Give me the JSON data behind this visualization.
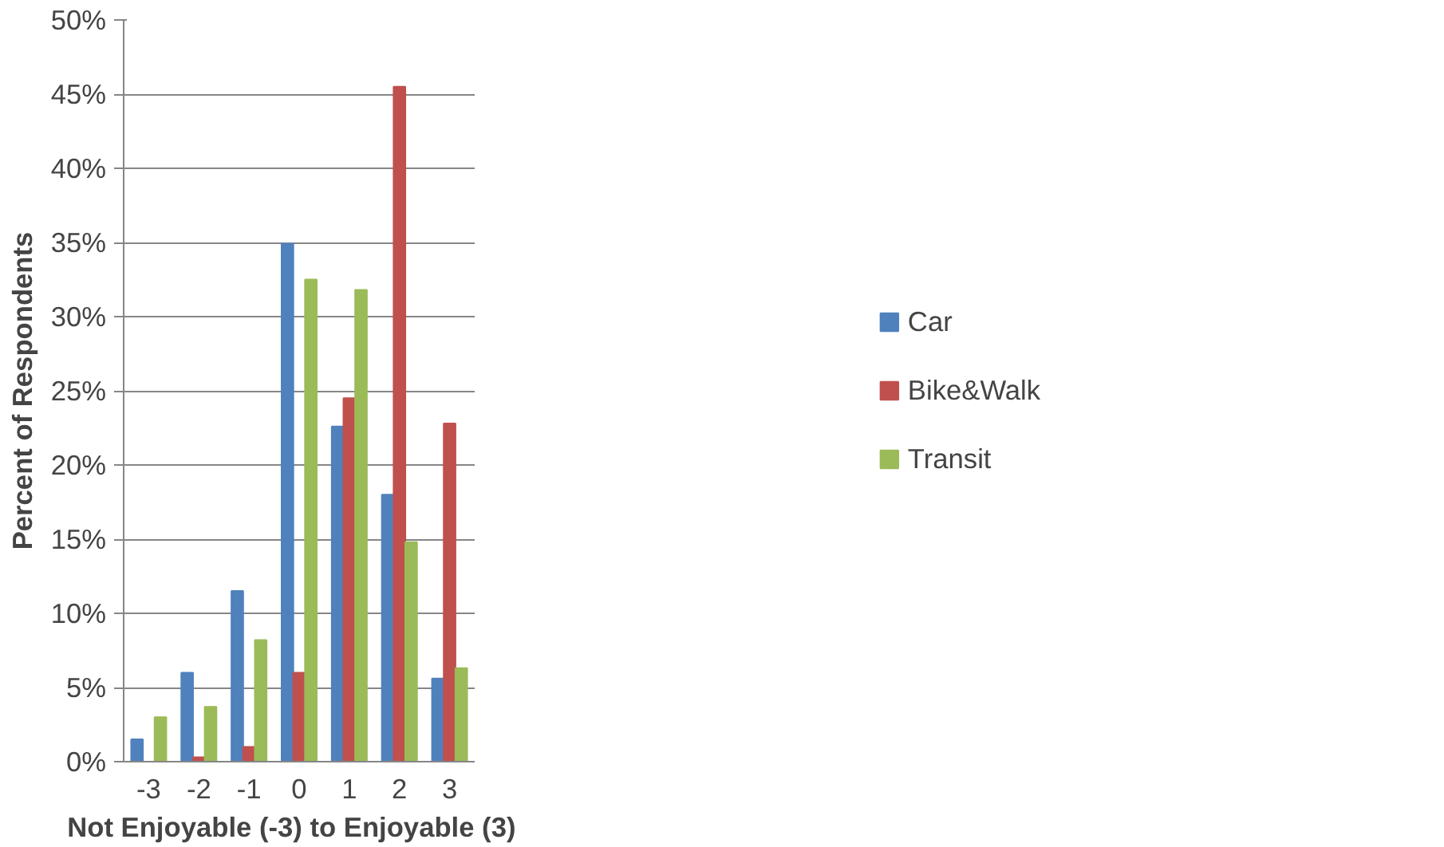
{
  "chart_data": {
    "type": "bar",
    "xlabel": "Not Enjoyable  (-3) to Enjoyable  (3)",
    "ylabel": "Percent of Respondents",
    "categories": [
      "-3",
      "-2",
      "-1",
      "0",
      "1",
      "2",
      "3"
    ],
    "series": [
      {
        "name": "Car",
        "color": "#4f81bd",
        "values": [
          1.5,
          6.0,
          11.5,
          34.9,
          22.6,
          18.0,
          5.6
        ]
      },
      {
        "name": "Bike&Walk",
        "color": "#c0504d",
        "values": [
          0,
          0.3,
          1.0,
          6.0,
          24.5,
          45.5,
          22.8
        ]
      },
      {
        "name": "Transit",
        "color": "#9bbb59",
        "values": [
          3.0,
          3.7,
          8.2,
          32.5,
          31.8,
          14.8,
          6.3
        ]
      }
    ],
    "ylim": [
      0,
      50
    ],
    "yticks": [
      {
        "value": 0,
        "label": "0%"
      },
      {
        "value": 5,
        "label": "5%"
      },
      {
        "value": 10,
        "label": "10%"
      },
      {
        "value": 15,
        "label": "15%"
      },
      {
        "value": 20,
        "label": "20%"
      },
      {
        "value": 25,
        "label": "25%"
      },
      {
        "value": 30,
        "label": "30%"
      },
      {
        "value": 35,
        "label": "35%"
      },
      {
        "value": 40,
        "label": "40%"
      },
      {
        "value": 45,
        "label": "45%"
      },
      {
        "value": 50,
        "label": "50%"
      }
    ],
    "grid": "y",
    "legend": "right"
  }
}
